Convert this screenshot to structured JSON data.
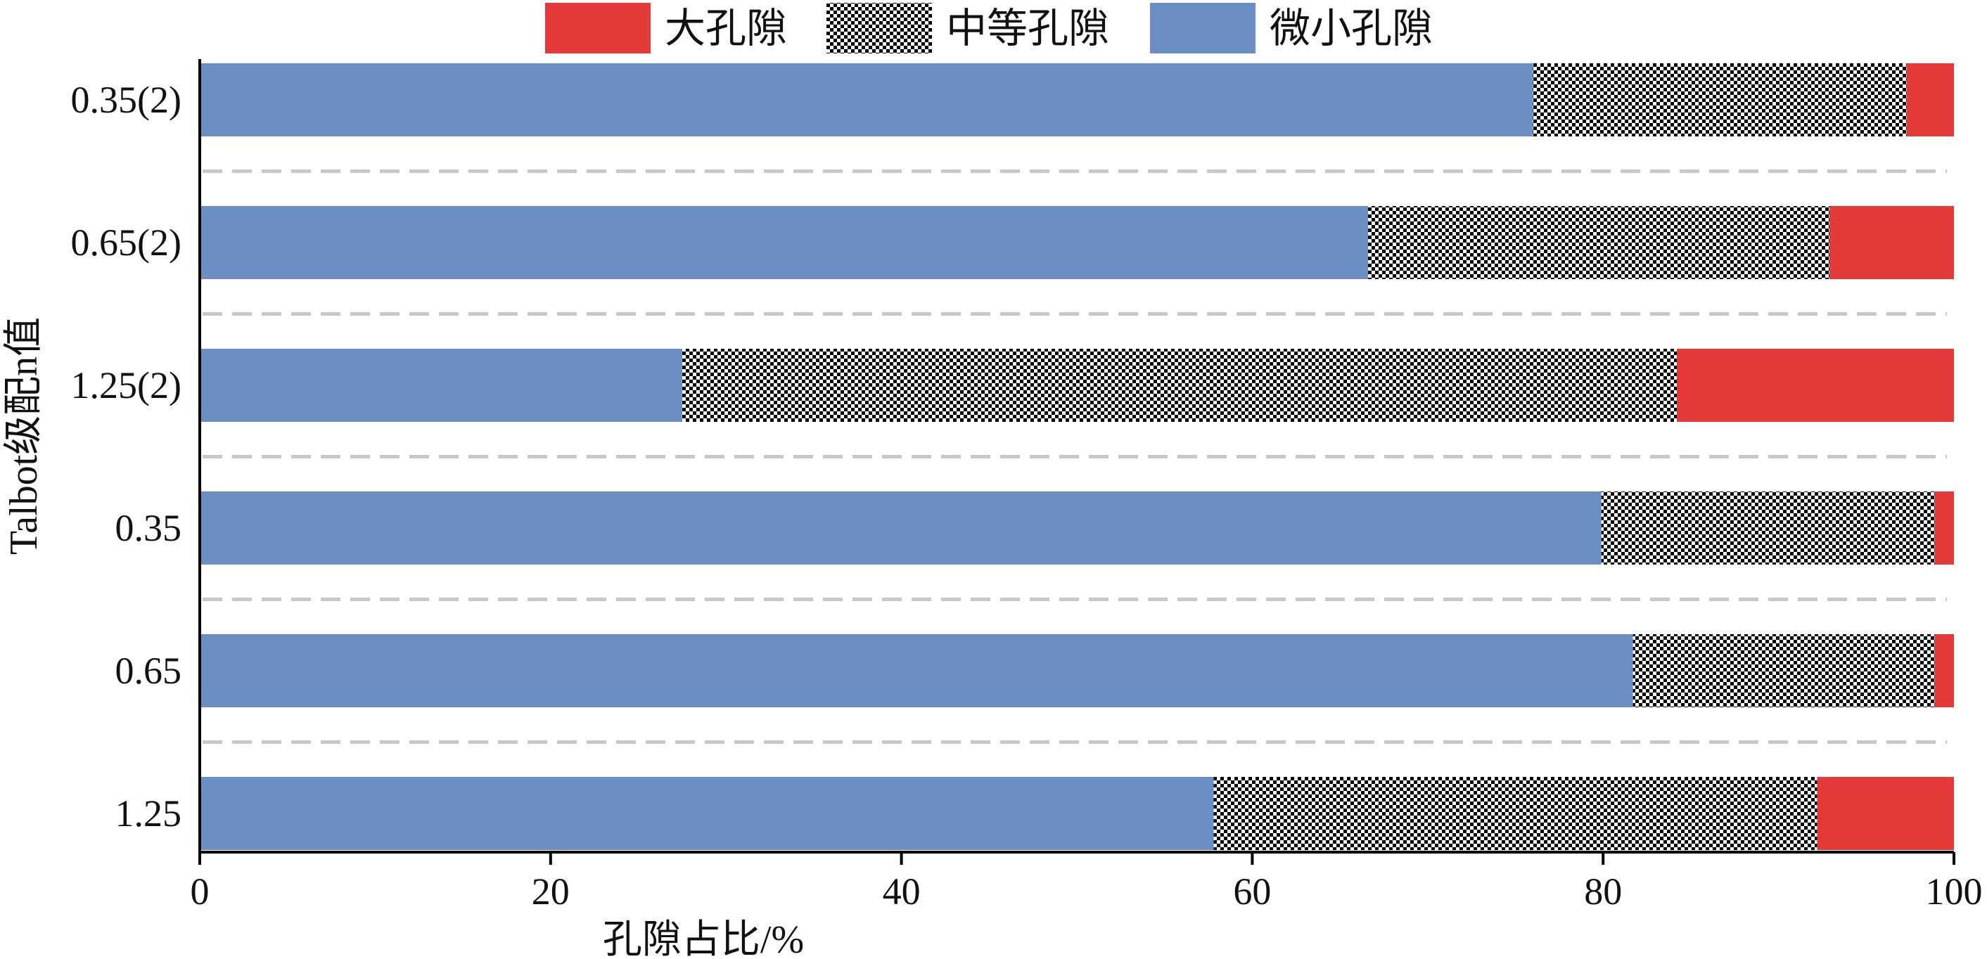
{
  "chart_data": {
    "type": "bar",
    "orientation": "horizontal",
    "stacked": true,
    "categories": [
      "0.35(2)",
      "0.65(2)",
      "1.25(2)",
      "0.35",
      "0.65",
      "1.25"
    ],
    "series": [
      {
        "name": "微小孔隙",
        "values": [
          76.0,
          66.6,
          27.5,
          79.9,
          81.7,
          57.8
        ]
      },
      {
        "name": "中等孔隙",
        "values": [
          21.3,
          26.3,
          56.7,
          19.0,
          17.2,
          34.4
        ]
      },
      {
        "name": "大孔隙",
        "values": [
          2.7,
          7.1,
          15.8,
          1.1,
          1.1,
          7.8
        ]
      }
    ],
    "legend_order": [
      "大孔隙",
      "中等孔隙",
      "微小孔隙"
    ],
    "xlabel": "孔隙占比/%",
    "ylabel": "Talbot级配n值",
    "xlim": [
      0,
      100
    ],
    "xticks": [
      0,
      20,
      40,
      60,
      80,
      100
    ],
    "legend_position": "top",
    "grid": "dashed separators between bars",
    "colors": {
      "微小孔隙": "#6b8fc2",
      "中等孔隙": "checker-pattern",
      "大孔隙": "#e53a3a",
      "grid": "#c8c8c8",
      "axis": "#000000"
    }
  }
}
